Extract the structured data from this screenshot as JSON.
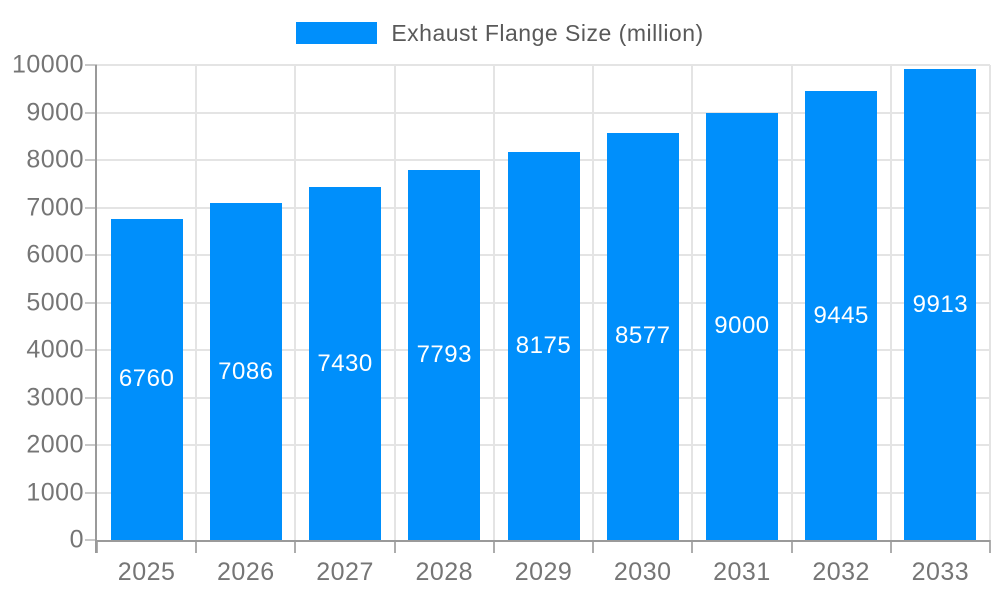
{
  "chart_data": {
    "type": "bar",
    "name": "Exhaust Flange Size (million)",
    "categories": [
      "2025",
      "2026",
      "2027",
      "2028",
      "2029",
      "2030",
      "2031",
      "2032",
      "2033"
    ],
    "values": [
      6760,
      7086,
      7430,
      7793,
      8175,
      8577,
      9000,
      9445,
      9913
    ],
    "title": "",
    "xlabel": "",
    "ylabel": "",
    "ylim": [
      0,
      10000
    ],
    "ytick_step": 1000,
    "ytick_labels": [
      "0",
      "1000",
      "2000",
      "3000",
      "4000",
      "5000",
      "6000",
      "7000",
      "8000",
      "9000",
      "10000"
    ],
    "grid": true,
    "legend_position": "top",
    "value_labels": "inside-center-white",
    "colors": {
      "bar": "#008FFB",
      "axis_text": "#757575",
      "legend_text": "#595959",
      "gridline": "#e4e4e4",
      "axis_line": "#9a9a9a"
    }
  }
}
